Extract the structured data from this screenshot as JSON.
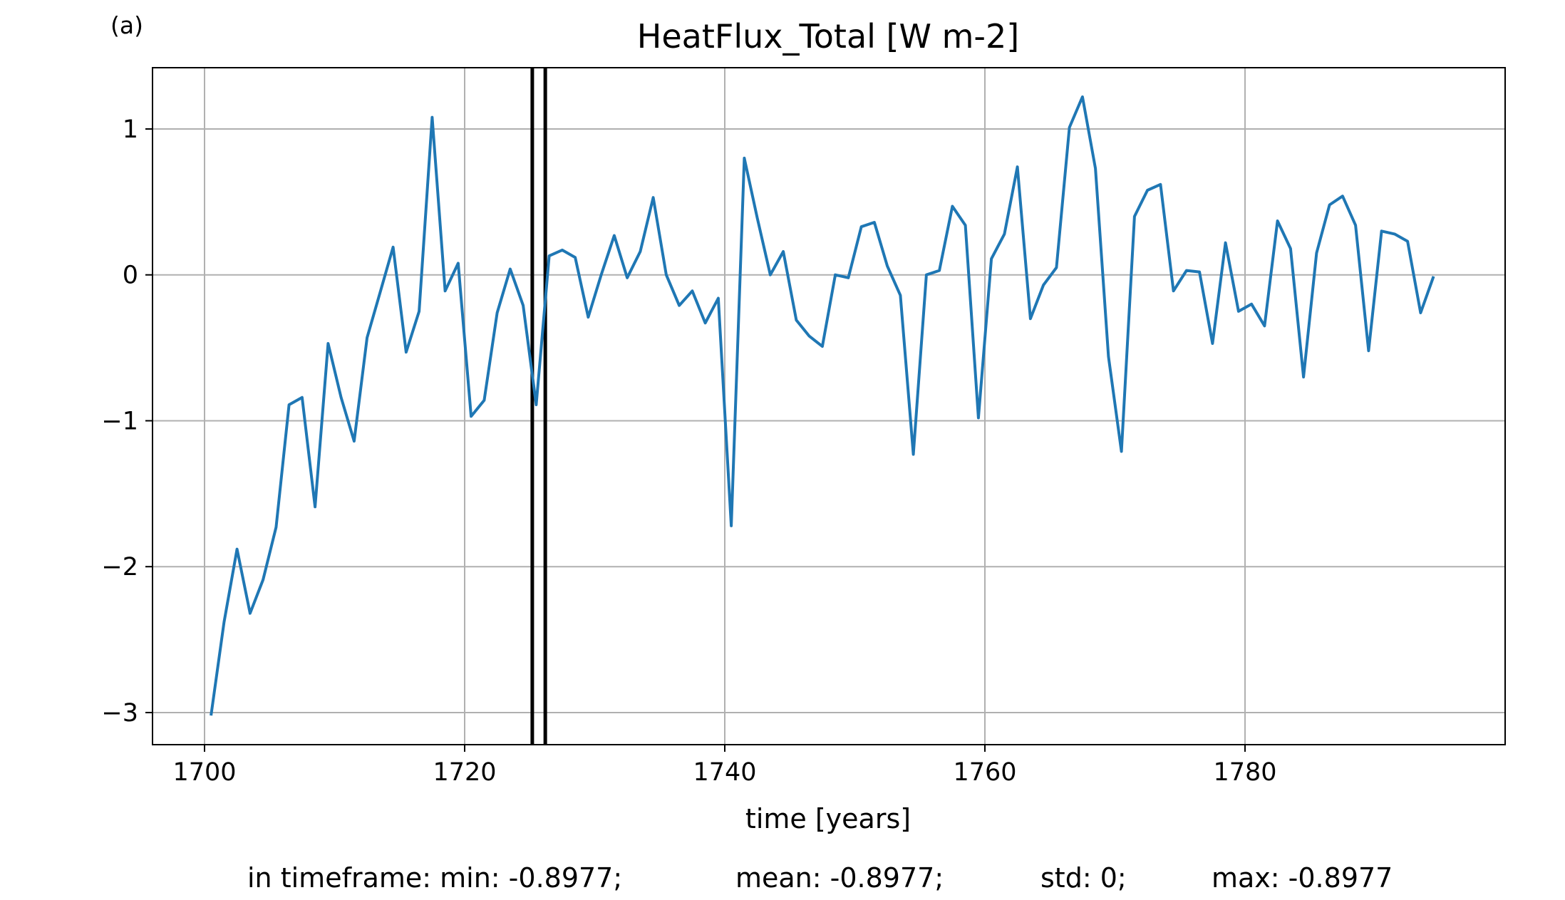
{
  "chart_data": {
    "type": "line",
    "panel_label": "(a)",
    "title": "HeatFlux_Total [W m-2]",
    "xlabel": "time [years]",
    "ylabel": "",
    "xlim": [
      1696,
      1800
    ],
    "ylim": [
      -3.22,
      1.42
    ],
    "xticks": [
      1700,
      1720,
      1740,
      1760,
      1780
    ],
    "xtick_labels": [
      "1700",
      "1720",
      "1740",
      "1760",
      "1780"
    ],
    "yticks": [
      -3,
      -2,
      -1,
      0,
      1
    ],
    "ytick_labels": [
      "−3",
      "−2",
      "−1",
      "0",
      "1"
    ],
    "grid": true,
    "series": [
      {
        "color": "#1f77b4",
        "x": [
          1700.5,
          1701.5,
          1702.5,
          1703.5,
          1704.5,
          1705.5,
          1706.5,
          1707.5,
          1708.5,
          1709.5,
          1710.5,
          1711.5,
          1712.5,
          1713.5,
          1714.5,
          1715.5,
          1716.5,
          1717.5,
          1718.5,
          1719.5,
          1720.5,
          1721.5,
          1722.5,
          1723.5,
          1724.5,
          1725.5,
          1726.5,
          1727.5,
          1728.5,
          1729.5,
          1730.5,
          1731.5,
          1732.5,
          1733.5,
          1734.5,
          1735.5,
          1736.5,
          1737.5,
          1738.5,
          1739.5,
          1740.5,
          1741.5,
          1742.5,
          1743.5,
          1744.5,
          1745.5,
          1746.5,
          1747.5,
          1748.5,
          1749.5,
          1750.5,
          1751.5,
          1752.5,
          1753.5,
          1754.5,
          1755.5,
          1756.5,
          1757.5,
          1758.5,
          1759.5,
          1760.5,
          1761.5,
          1762.5,
          1763.5,
          1764.5,
          1765.5,
          1766.5,
          1767.5,
          1768.5,
          1769.5,
          1770.5,
          1771.5,
          1772.5,
          1773.5,
          1774.5,
          1775.5,
          1776.5,
          1777.5,
          1778.5,
          1779.5,
          1780.5,
          1781.5,
          1782.5,
          1783.5,
          1784.5,
          1785.5,
          1786.5,
          1787.5,
          1788.5,
          1789.5,
          1790.5,
          1791.5,
          1792.5,
          1793.5,
          1794.5
        ],
        "y": [
          -3.02,
          -2.38,
          -1.88,
          -2.32,
          -2.09,
          -1.73,
          -0.89,
          -0.84,
          -1.59,
          -0.47,
          -0.84,
          -1.14,
          -0.43,
          -0.12,
          0.19,
          -0.53,
          -0.25,
          1.08,
          -0.11,
          0.08,
          -0.97,
          -0.86,
          -0.26,
          0.04,
          -0.21,
          -0.89,
          0.13,
          0.17,
          0.12,
          -0.29,
          0.0,
          0.27,
          -0.02,
          0.16,
          0.53,
          0.0,
          -0.21,
          -0.11,
          -0.33,
          -0.16,
          -1.72,
          0.8,
          0.39,
          0.0,
          0.16,
          -0.31,
          -0.42,
          -0.49,
          0.0,
          -0.02,
          0.33,
          0.36,
          0.06,
          -0.14,
          -1.23,
          0.0,
          0.03,
          0.47,
          0.34,
          -0.98,
          0.11,
          0.28,
          0.74,
          -0.3,
          -0.07,
          0.05,
          1.01,
          1.22,
          0.73,
          -0.56,
          -1.21,
          0.4,
          0.58,
          0.62,
          -0.11,
          0.03,
          0.02,
          -0.47,
          0.22,
          -0.25,
          -0.2,
          -0.35,
          0.37,
          0.18,
          -0.7,
          0.15,
          0.48,
          0.54,
          0.34,
          -0.52,
          0.3,
          0.28,
          0.23,
          -0.26,
          -0.01
        ]
      }
    ],
    "vertical_lines": [
      {
        "x": 1725.2,
        "color": "#000000"
      },
      {
        "x": 1726.2,
        "color": "#000000"
      }
    ],
    "stats": {
      "min_text": "in timeframe: min: -0.8977;",
      "mean_text": "mean: -0.8977;",
      "std_text": "std: 0;",
      "max_text": "max: -0.8977"
    }
  }
}
